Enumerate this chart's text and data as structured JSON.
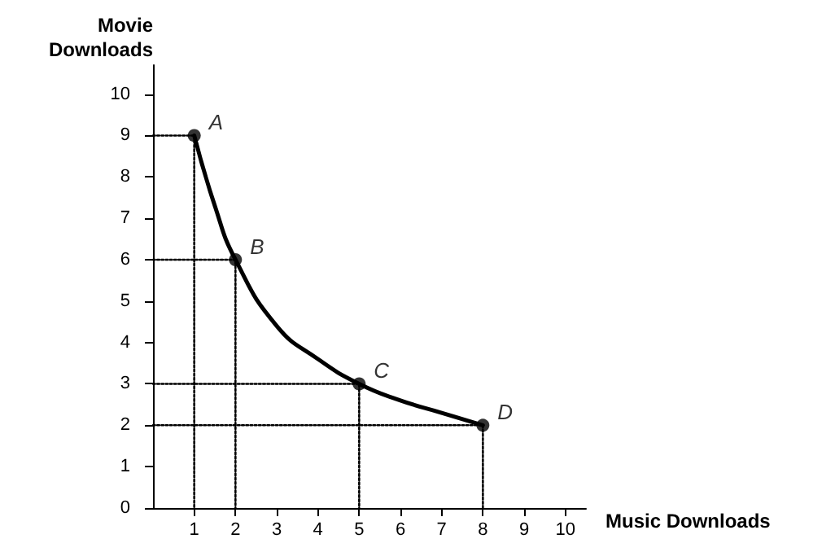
{
  "chart_data": {
    "type": "line",
    "xlabel": "Music Downloads",
    "ylabel": "Movie Downloads",
    "xlim": [
      0,
      10.5
    ],
    "ylim": [
      0,
      10.7
    ],
    "xticks": [
      1,
      2,
      3,
      4,
      5,
      6,
      7,
      8,
      9,
      10
    ],
    "yticks": [
      0,
      1,
      2,
      3,
      4,
      5,
      6,
      7,
      8,
      9,
      10
    ],
    "grid": false,
    "series": [
      {
        "type": "line",
        "color": "#000000",
        "line_style": "dotted",
        "marker": "none",
        "x": [
          0,
          1,
          1
        ],
        "values": [
          9,
          9,
          0
        ]
      },
      {
        "type": "line",
        "color": "#000000",
        "line_style": "dotted",
        "marker": "none",
        "x": [
          0,
          2,
          2
        ],
        "values": [
          6,
          6,
          0
        ]
      },
      {
        "type": "line",
        "color": "#000000",
        "line_style": "dotted",
        "marker": "none",
        "x": [
          0,
          5,
          5
        ],
        "values": [
          3,
          3,
          0
        ]
      },
      {
        "type": "line",
        "color": "#000000",
        "line_style": "dotted",
        "marker": "none",
        "x": [
          0,
          8,
          8
        ],
        "values": [
          2,
          2,
          0
        ]
      },
      {
        "color": "#000000",
        "line_style": "solid",
        "marker": "none",
        "x": [
          1,
          1.5,
          2,
          3,
          4,
          5,
          6,
          7,
          8
        ],
        "values": [
          9,
          7.3,
          6,
          4.4,
          3.6,
          3,
          2.6,
          2.3,
          2
        ]
      },
      {
        "type": "scatter",
        "color": "#000000",
        "marker": "circle",
        "x": [
          1,
          2,
          5,
          8
        ],
        "values": [
          9,
          6,
          3,
          2
        ]
      }
    ],
    "annotations": [
      {
        "text": "A",
        "x": 1,
        "y": 9
      },
      {
        "text": "B",
        "x": 2,
        "y": 6
      },
      {
        "text": "C",
        "x": 5,
        "y": 3
      },
      {
        "text": "D",
        "x": 8,
        "y": 2
      }
    ]
  }
}
